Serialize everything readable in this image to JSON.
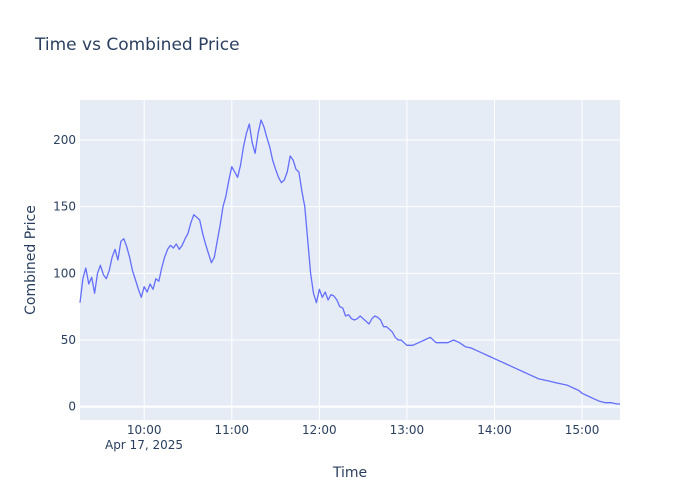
{
  "chart_data": {
    "type": "line",
    "title": "Time vs Combined Price",
    "xlabel": "Time",
    "ylabel": "Combined Price",
    "date_label": "Apr 17, 2025",
    "x_ticks": [
      "10:00",
      "11:00",
      "12:00",
      "13:00",
      "14:00",
      "15:00"
    ],
    "y_ticks": [
      0,
      50,
      100,
      150,
      200
    ],
    "xlim": [
      "09:16",
      "15:26"
    ],
    "ylim": [
      -10,
      230
    ],
    "grid": true,
    "colors": {
      "plot_bg": "#e5ecf6",
      "line": "#636efa",
      "text": "#2a3f5f"
    },
    "series": [
      {
        "x": [
          "09:16",
          "09:18",
          "09:20",
          "09:22",
          "09:24",
          "09:26",
          "09:28",
          "09:30",
          "09:32",
          "09:34",
          "09:36",
          "09:38",
          "09:40",
          "09:42",
          "09:44",
          "09:46",
          "09:48",
          "09:50",
          "09:52",
          "09:54",
          "09:56",
          "09:58",
          "10:00",
          "10:02",
          "10:04",
          "10:06",
          "10:08",
          "10:10",
          "10:12",
          "10:14",
          "10:16",
          "10:18",
          "10:20",
          "10:22",
          "10:24",
          "10:26",
          "10:28",
          "10:30",
          "10:32",
          "10:34",
          "10:36",
          "10:38",
          "10:40",
          "10:42",
          "10:44",
          "10:46",
          "10:48",
          "10:50",
          "10:52",
          "10:54",
          "10:56",
          "10:58",
          "11:00",
          "11:02",
          "11:04",
          "11:06",
          "11:08",
          "11:10",
          "11:12",
          "11:14",
          "11:16",
          "11:18",
          "11:20",
          "11:22",
          "11:24",
          "11:26",
          "11:28",
          "11:30",
          "11:32",
          "11:34",
          "11:36",
          "11:38",
          "11:40",
          "11:42",
          "11:44",
          "11:46",
          "11:48",
          "11:50",
          "11:52",
          "11:54",
          "11:56",
          "11:58",
          "12:00",
          "12:02",
          "12:04",
          "12:06",
          "12:08",
          "12:10",
          "12:12",
          "12:14",
          "12:16",
          "12:18",
          "12:20",
          "12:22",
          "12:24",
          "12:26",
          "12:28",
          "12:30",
          "12:32",
          "12:34",
          "12:36",
          "12:38",
          "12:40",
          "12:42",
          "12:44",
          "12:46",
          "12:48",
          "12:50",
          "12:52",
          "12:54",
          "12:56",
          "12:58",
          "13:00",
          "13:04",
          "13:08",
          "13:12",
          "13:16",
          "13:20",
          "13:24",
          "13:28",
          "13:32",
          "13:36",
          "13:40",
          "13:44",
          "13:48",
          "13:52",
          "13:56",
          "14:00",
          "14:04",
          "14:08",
          "14:12",
          "14:16",
          "14:18",
          "14:20",
          "14:22",
          "14:24",
          "14:26",
          "14:28",
          "14:30",
          "14:34",
          "14:38",
          "14:42",
          "14:46",
          "14:50",
          "14:54",
          "14:58",
          "15:00",
          "15:04",
          "15:08",
          "15:12",
          "15:16",
          "15:20",
          "15:24",
          "15:26"
        ],
        "y": [
          78,
          96,
          104,
          92,
          97,
          85,
          100,
          106,
          99,
          96,
          102,
          112,
          118,
          110,
          124,
          126,
          120,
          112,
          102,
          95,
          88,
          82,
          90,
          86,
          92,
          88,
          96,
          94,
          104,
          112,
          118,
          121,
          119,
          122,
          118,
          121,
          126,
          130,
          138,
          144,
          142,
          140,
          130,
          122,
          115,
          108,
          112,
          124,
          136,
          150,
          158,
          170,
          180,
          176,
          172,
          181,
          195,
          205,
          212,
          198,
          190,
          205,
          215,
          210,
          202,
          195,
          185,
          178,
          172,
          168,
          170,
          176,
          188,
          185,
          178,
          176,
          162,
          150,
          125,
          100,
          85,
          78,
          88,
          82,
          86,
          80,
          84,
          83,
          80,
          75,
          74,
          68,
          69,
          66,
          65,
          66,
          68,
          66,
          64,
          62,
          66,
          68,
          67,
          65,
          60,
          60,
          58,
          56,
          52,
          50,
          50,
          48,
          46,
          46,
          48,
          50,
          52,
          48,
          48,
          48,
          50,
          48,
          45,
          44,
          42,
          40,
          38,
          36,
          34,
          32,
          30,
          28,
          27,
          26,
          25,
          24,
          23,
          22,
          21,
          20,
          19,
          18,
          17,
          16,
          14,
          12,
          10,
          8,
          6,
          4,
          3,
          3,
          2,
          2
        ],
        "y_check": []
      }
    ]
  }
}
